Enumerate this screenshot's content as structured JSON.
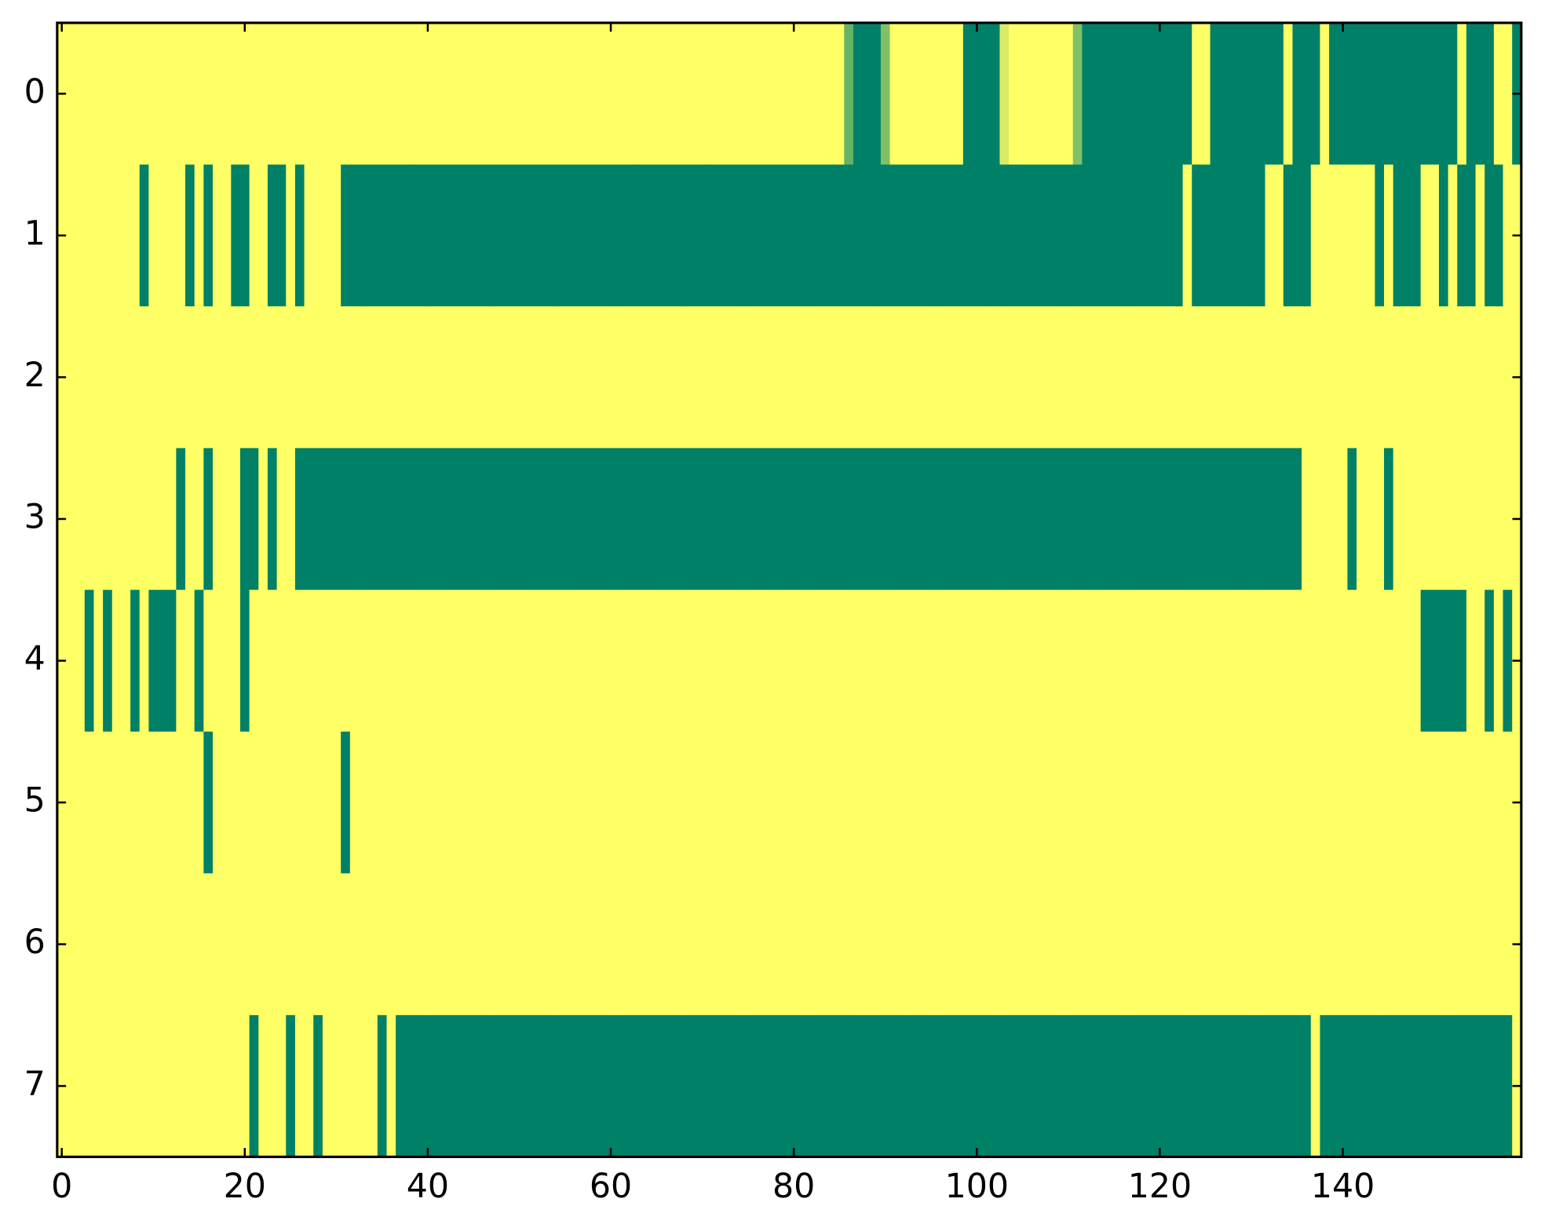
{
  "chart_data": {
    "type": "heatmap",
    "cmap": [
      "#008066",
      "#ffff66"
    ],
    "xlim": [
      -0.5,
      159.5
    ],
    "ylim": [
      7.5,
      -0.5
    ],
    "xticks": [
      0,
      20,
      40,
      60,
      80,
      100,
      120,
      140
    ],
    "yticks": [
      0,
      1,
      2,
      3,
      4,
      5,
      6,
      7
    ],
    "z": [
      [
        1,
        1,
        1,
        1,
        1,
        1,
        1,
        1,
        1,
        1,
        1,
        1,
        1,
        1,
        1,
        1,
        1,
        1,
        1,
        1,
        1,
        1,
        1,
        1,
        1,
        1,
        1,
        1,
        1,
        1,
        1,
        1,
        1,
        1,
        1,
        1,
        1,
        1,
        1,
        1,
        1,
        1,
        1,
        1,
        1,
        1,
        1,
        1,
        1,
        1,
        1,
        1,
        1,
        1,
        1,
        1,
        1,
        1,
        1,
        1,
        1,
        1,
        1,
        1,
        1,
        1,
        1,
        1,
        1,
        1,
        1,
        1,
        1,
        1,
        1,
        1,
        1,
        1,
        1,
        1,
        1,
        1,
        1,
        1,
        1,
        1,
        0.4,
        0,
        0,
        0,
        0.5,
        1,
        1,
        1,
        1,
        1,
        1,
        1,
        1,
        0,
        0,
        0,
        0,
        0.85,
        1,
        1,
        1,
        1,
        1,
        1,
        1,
        0.5,
        0,
        0,
        0,
        0,
        0,
        0,
        0,
        0,
        0,
        0,
        0,
        0,
        1,
        1,
        0,
        0,
        0,
        0,
        0,
        0,
        0,
        0,
        1,
        0,
        0,
        0,
        1,
        0,
        0,
        0,
        0,
        0,
        0,
        0,
        0,
        0,
        0,
        0,
        0,
        0,
        0,
        1,
        0,
        0,
        0,
        1,
        1,
        0
      ],
      [
        1,
        1,
        1,
        1,
        1,
        1,
        1,
        1,
        1,
        0,
        1,
        1,
        1,
        1,
        0,
        1,
        0,
        1,
        1,
        0,
        0,
        1,
        1,
        0,
        0,
        1,
        0,
        1,
        1,
        1,
        1,
        0,
        0,
        0,
        0,
        0,
        0,
        0,
        0,
        0,
        0,
        0,
        0,
        0,
        0,
        0,
        0,
        0,
        0,
        0,
        0,
        0,
        0,
        0,
        0,
        0,
        0,
        0,
        0,
        0,
        0,
        0,
        0,
        0,
        0,
        0,
        0,
        0,
        0,
        0,
        0,
        0,
        0,
        0,
        0,
        0,
        0,
        0,
        0,
        0,
        0,
        0,
        0,
        0,
        0,
        0,
        0,
        0,
        0,
        0,
        0,
        0,
        0,
        0,
        0,
        0,
        0,
        0,
        0,
        0,
        0,
        0,
        0,
        0,
        0,
        0,
        0,
        0,
        0,
        0,
        0,
        0,
        0,
        0,
        0,
        0,
        0,
        0,
        0,
        0,
        0,
        0,
        0,
        1,
        0,
        0,
        0,
        0,
        0,
        0,
        0,
        0,
        1,
        1,
        0,
        0,
        0,
        1,
        1,
        1,
        1,
        1,
        1,
        1,
        0,
        1,
        0,
        0,
        0,
        1,
        1,
        0,
        1,
        0,
        0,
        1,
        0,
        0,
        1,
        1
      ],
      [
        1,
        1,
        1,
        1,
        1,
        1,
        1,
        1,
        1,
        1,
        1,
        1,
        1,
        1,
        1,
        1,
        1,
        1,
        1,
        1,
        1,
        1,
        1,
        1,
        1,
        1,
        1,
        1,
        1,
        1,
        1,
        1,
        1,
        1,
        1,
        1,
        1,
        1,
        1,
        1,
        1,
        1,
        1,
        1,
        1,
        1,
        1,
        1,
        1,
        1,
        1,
        1,
        1,
        1,
        1,
        1,
        1,
        1,
        1,
        1,
        1,
        1,
        1,
        1,
        1,
        1,
        1,
        1,
        1,
        1,
        1,
        1,
        1,
        1,
        1,
        1,
        1,
        1,
        1,
        1,
        1,
        1,
        1,
        1,
        1,
        1,
        1,
        1,
        1,
        1,
        1,
        1,
        1,
        1,
        1,
        1,
        1,
        1,
        1,
        1,
        1,
        1,
        1,
        1,
        1,
        1,
        1,
        1,
        1,
        1,
        1,
        1,
        1,
        1,
        1,
        1,
        1,
        1,
        1,
        1,
        1,
        1,
        1,
        1,
        1,
        1,
        1,
        1,
        1,
        1,
        1,
        1,
        1,
        1,
        1,
        1,
        1,
        1,
        1,
        1,
        1,
        1,
        1,
        1,
        1,
        1,
        1,
        1,
        1,
        1,
        1,
        1,
        1,
        1,
        1,
        1,
        1,
        1,
        1,
        1
      ],
      [
        1,
        1,
        1,
        1,
        1,
        1,
        1,
        1,
        1,
        1,
        1,
        1,
        1,
        0,
        1,
        1,
        0,
        1,
        1,
        1,
        0,
        0,
        1,
        0,
        1,
        1,
        0,
        0,
        0,
        0,
        0,
        0,
        0,
        0,
        0,
        0,
        0,
        0,
        0,
        0,
        0,
        0,
        0,
        0,
        0,
        0,
        0,
        0,
        0,
        0,
        0,
        0,
        0,
        0,
        0,
        0,
        0,
        0,
        0,
        0,
        0,
        0,
        0,
        0,
        0,
        0,
        0,
        0,
        0,
        0,
        0,
        0,
        0,
        0,
        0,
        0,
        0,
        0,
        0,
        0,
        0,
        0,
        0,
        0,
        0,
        0,
        0,
        0,
        0,
        0,
        0,
        0,
        0,
        0,
        0,
        0,
        0,
        0,
        0,
        0,
        0,
        0,
        0,
        0,
        0,
        0,
        0,
        0,
        0,
        0,
        0,
        0,
        0,
        0,
        0,
        0,
        0,
        0,
        0,
        0,
        0,
        0,
        0,
        0,
        0,
        0,
        0,
        0,
        0,
        0,
        0,
        0,
        0,
        0,
        0,
        0,
        1,
        1,
        1,
        1,
        1,
        0,
        1,
        1,
        1,
        0,
        1,
        1,
        1,
        1,
        1,
        1,
        1,
        1,
        1,
        1,
        1,
        1,
        1,
        1
      ],
      [
        1,
        1,
        1,
        0,
        1,
        0,
        1,
        1,
        0,
        1,
        0,
        0,
        0,
        1,
        1,
        0,
        1,
        1,
        1,
        1,
        0,
        1,
        1,
        1,
        1,
        1,
        1,
        1,
        1,
        1,
        1,
        1,
        1,
        1,
        1,
        1,
        1,
        1,
        1,
        1,
        1,
        1,
        1,
        1,
        1,
        1,
        1,
        1,
        1,
        1,
        1,
        1,
        1,
        1,
        1,
        1,
        1,
        1,
        1,
        1,
        1,
        1,
        1,
        1,
        1,
        1,
        1,
        1,
        1,
        1,
        1,
        1,
        1,
        1,
        1,
        1,
        1,
        1,
        1,
        1,
        1,
        1,
        1,
        1,
        1,
        1,
        1,
        1,
        1,
        1,
        1,
        1,
        1,
        1,
        1,
        1,
        1,
        1,
        1,
        1,
        1,
        1,
        1,
        1,
        1,
        1,
        1,
        1,
        1,
        1,
        1,
        1,
        1,
        1,
        1,
        1,
        1,
        1,
        1,
        1,
        1,
        1,
        1,
        1,
        1,
        1,
        1,
        1,
        1,
        1,
        1,
        1,
        1,
        1,
        1,
        1,
        1,
        1,
        1,
        1,
        1,
        1,
        1,
        1,
        1,
        1,
        1,
        1,
        1,
        0,
        0,
        0,
        0,
        0,
        1,
        1,
        0,
        1,
        0,
        1
      ],
      [
        1,
        1,
        1,
        1,
        1,
        1,
        1,
        1,
        1,
        1,
        1,
        1,
        1,
        1,
        1,
        1,
        0,
        1,
        1,
        1,
        1,
        1,
        1,
        1,
        1,
        1,
        1,
        1,
        1,
        1,
        1,
        0,
        1,
        1,
        1,
        1,
        1,
        1,
        1,
        1,
        1,
        1,
        1,
        1,
        1,
        1,
        1,
        1,
        1,
        1,
        1,
        1,
        1,
        1,
        1,
        1,
        1,
        1,
        1,
        1,
        1,
        1,
        1,
        1,
        1,
        1,
        1,
        1,
        1,
        1,
        1,
        1,
        1,
        1,
        1,
        1,
        1,
        1,
        1,
        1,
        1,
        1,
        1,
        1,
        1,
        1,
        1,
        1,
        1,
        1,
        1,
        1,
        1,
        1,
        1,
        1,
        1,
        1,
        1,
        1,
        1,
        1,
        1,
        1,
        1,
        1,
        1,
        1,
        1,
        1,
        1,
        1,
        1,
        1,
        1,
        1,
        1,
        1,
        1,
        1,
        1,
        1,
        1,
        1,
        1,
        1,
        1,
        1,
        1,
        1,
        1,
        1,
        1,
        1,
        1,
        1,
        1,
        1,
        1,
        1,
        1,
        1,
        1,
        1,
        1,
        1,
        1,
        1,
        1,
        1,
        1,
        1,
        1,
        1,
        1,
        1,
        1,
        1,
        1,
        1
      ],
      [
        1,
        1,
        1,
        1,
        1,
        1,
        1,
        1,
        1,
        1,
        1,
        1,
        1,
        1,
        1,
        1,
        1,
        1,
        1,
        1,
        1,
        1,
        1,
        1,
        1,
        1,
        1,
        1,
        1,
        1,
        1,
        1,
        1,
        1,
        1,
        1,
        1,
        1,
        1,
        1,
        1,
        1,
        1,
        1,
        1,
        1,
        1,
        1,
        1,
        1,
        1,
        1,
        1,
        1,
        1,
        1,
        1,
        1,
        1,
        1,
        1,
        1,
        1,
        1,
        1,
        1,
        1,
        1,
        1,
        1,
        1,
        1,
        1,
        1,
        1,
        1,
        1,
        1,
        1,
        1,
        1,
        1,
        1,
        1,
        1,
        1,
        1,
        1,
        1,
        1,
        1,
        1,
        1,
        1,
        1,
        1,
        1,
        1,
        1,
        1,
        1,
        1,
        1,
        1,
        1,
        1,
        1,
        1,
        1,
        1,
        1,
        1,
        1,
        1,
        1,
        1,
        1,
        1,
        1,
        1,
        1,
        1,
        1,
        1,
        1,
        1,
        1,
        1,
        1,
        1,
        1,
        1,
        1,
        1,
        1,
        1,
        1,
        1,
        1,
        1,
        1,
        1,
        1,
        1,
        1,
        1,
        1,
        1,
        1,
        1,
        1,
        1,
        1,
        1,
        1,
        1,
        1,
        1,
        1,
        1
      ],
      [
        1,
        1,
        1,
        1,
        1,
        1,
        1,
        1,
        1,
        1,
        1,
        1,
        1,
        1,
        1,
        1,
        1,
        1,
        1,
        1,
        1,
        0,
        1,
        1,
        1,
        0,
        1,
        1,
        0,
        1,
        1,
        1,
        1,
        1,
        1,
        0,
        1,
        0,
        0,
        0,
        0,
        0,
        0,
        0,
        0,
        0,
        0,
        0,
        0,
        0,
        0,
        0,
        0,
        0,
        0,
        0,
        0,
        0,
        0,
        0,
        0,
        0,
        0,
        0,
        0,
        0,
        0,
        0,
        0,
        0,
        0,
        0,
        0,
        0,
        0,
        0,
        0,
        0,
        0,
        0,
        0,
        0,
        0,
        0,
        0,
        0,
        0,
        0,
        0,
        0,
        0,
        0,
        0,
        0,
        0,
        0,
        0,
        0,
        0,
        0,
        0,
        0,
        0,
        0,
        0,
        0,
        0,
        0,
        0,
        0,
        0,
        0,
        0,
        0,
        0,
        0,
        0,
        0,
        0,
        0,
        0,
        0,
        0,
        0,
        0,
        0,
        0,
        0,
        0,
        0,
        0,
        0,
        0,
        0,
        0,
        0,
        0,
        1,
        0,
        0,
        0,
        0,
        0,
        0,
        0,
        0,
        0,
        0,
        0,
        0,
        0,
        0,
        0,
        0,
        0,
        0,
        0,
        0,
        0,
        1
      ]
    ]
  }
}
